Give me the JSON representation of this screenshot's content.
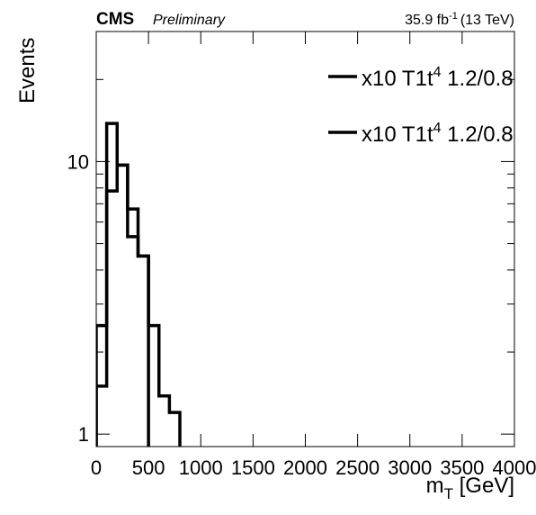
{
  "chart_data": {
    "type": "histogram",
    "experiment": "CMS",
    "status": "Preliminary",
    "lumi": "35.9 fb",
    "lumi_sup": "-1",
    "energy": "(13 TeV)",
    "ylabel": "Events",
    "xlabel": "m",
    "xlabel_sub": "T",
    "xlabel_unit": " [GeV]",
    "bins": [
      0,
      100,
      200,
      300,
      400,
      500,
      600,
      700,
      800,
      900,
      1000,
      1100,
      1200,
      1300,
      1400,
      1500,
      1600,
      1700,
      1800,
      1900,
      2000,
      2100,
      2200,
      2300,
      2400,
      2500,
      2600,
      2700,
      2800,
      2900,
      3000,
      3100,
      3200,
      3300,
      3400,
      3500,
      3600,
      3700,
      3800,
      3900,
      4000
    ],
    "series": [
      {
        "name": "x10 T1t",
        "name_sup": "4",
        "name_rest": " 1.2/0.8",
        "color": "#000000",
        "values": [
          2.5,
          7.8,
          9.7,
          6.7,
          4.5,
          2.5,
          1.38,
          1.2,
          0,
          0,
          0,
          0,
          0,
          0,
          0,
          0,
          0,
          0,
          0,
          0,
          0,
          0,
          0,
          0,
          0,
          0,
          0,
          0,
          0,
          0,
          0,
          0,
          0,
          0,
          0,
          0,
          0,
          0,
          0,
          0
        ]
      },
      {
        "name": "x10 T1t",
        "name_sup": "4",
        "name_rest": " 1.2/0.8",
        "color": "#000000",
        "values": [
          1.5,
          13.8,
          9.7,
          5.3,
          4.5,
          0,
          0,
          0,
          0,
          0,
          0,
          0,
          0,
          0,
          0,
          0,
          0,
          0,
          0,
          0,
          0,
          0,
          0,
          0,
          0,
          0,
          0,
          0,
          0,
          0,
          0,
          0,
          0,
          0,
          0,
          0,
          0,
          0,
          0,
          0
        ]
      }
    ],
    "xlim": [
      0,
      4000
    ],
    "xticks": [
      0,
      500,
      1000,
      1500,
      2000,
      2500,
      3000,
      3500,
      4000
    ],
    "ylim": [
      0.9,
      30
    ],
    "ylog": true,
    "yticks": [
      1,
      10
    ],
    "yminorticks": [
      2,
      3,
      4,
      5,
      6,
      7,
      8,
      9,
      20,
      30
    ]
  }
}
